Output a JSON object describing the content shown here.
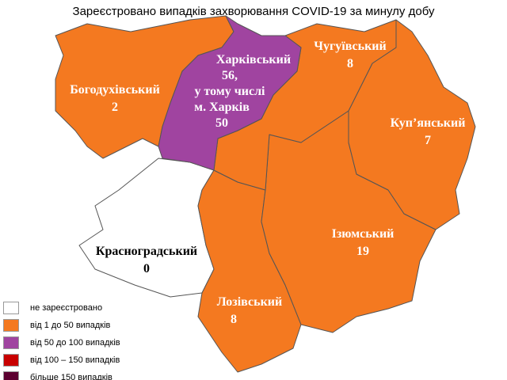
{
  "title": "Зареєстровано випадків захворювання COVID-19 за минулу добу",
  "colors": {
    "none": "#ffffff",
    "c1_50": "#f47920",
    "c50_100": "#a044a0",
    "c100_150": "#c80000",
    "c150": "#5c0030"
  },
  "regions": {
    "bohodukhivskyi": {
      "name": "Богодухівський",
      "value": "2"
    },
    "kharkivskyi": {
      "name": "Харківський",
      "value": "56,",
      "note1": "у тому числі",
      "note2": "м. Харків",
      "note_value": "50"
    },
    "chuhuivskyi": {
      "name": "Чугуївський",
      "value": "8"
    },
    "kupianskyi": {
      "name": "Куп’янський",
      "value": "7"
    },
    "iziumskyi": {
      "name": "Ізюмський",
      "value": "19"
    },
    "krasnohradskyi": {
      "name": "Красноградський",
      "value": "0"
    },
    "lozivskyi": {
      "name": "Лозівський",
      "value": "8"
    }
  },
  "legend": [
    {
      "label": "не зареєстровано",
      "color": "#ffffff"
    },
    {
      "label": "від 1 до 50  випадків",
      "color": "#f47920"
    },
    {
      "label": "від 50 до 100  випадків",
      "color": "#a044a0"
    },
    {
      "label": "від 100 – 150  випадків",
      "color": "#c80000"
    },
    {
      "label": "більше 150  випадків",
      "color": "#5c0030"
    }
  ]
}
